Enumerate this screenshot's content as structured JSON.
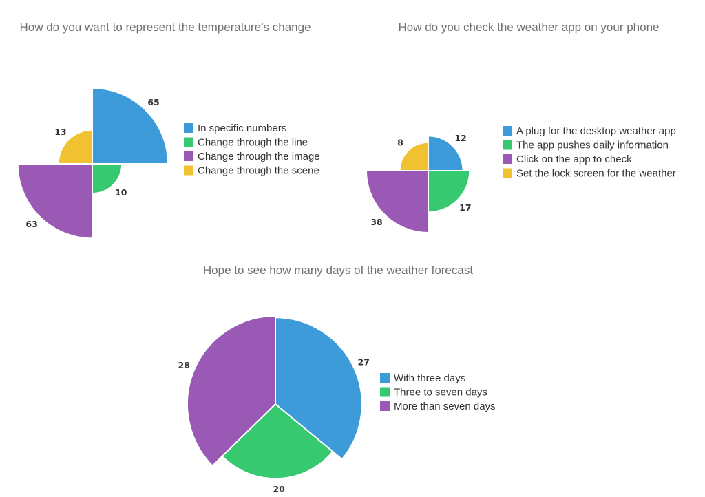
{
  "chart_data": [
    {
      "type": "pie",
      "variant": "rose",
      "title": "How do you want to represent the temperature’s change",
      "legend_position": "right",
      "categories": [
        "In specific numbers",
        "Change through the line",
        "Change through the image",
        "Change through the scene"
      ],
      "values": [
        65,
        10,
        63,
        13
      ],
      "colors": [
        "#3d9bd9",
        "#37c96f",
        "#9b59b6",
        "#f0c231"
      ]
    },
    {
      "type": "pie",
      "variant": "rose",
      "title": "How do you check the weather app on your phone",
      "legend_position": "right",
      "categories": [
        "A plug for the desktop weather app",
        "The app pushes daily information",
        "Click on the app to check",
        "Set the lock screen for the weather"
      ],
      "values": [
        12,
        17,
        38,
        8
      ],
      "colors": [
        "#3d9bd9",
        "#37c96f",
        "#9b59b6",
        "#f0c231"
      ]
    },
    {
      "type": "pie",
      "variant": "rose",
      "title": "Hope to see how many days of the weather forecast",
      "legend_position": "right",
      "categories": [
        "With three days",
        "Three to seven days",
        "More than seven days"
      ],
      "values": [
        27,
        20,
        28
      ],
      "colors": [
        "#3d9bd9",
        "#37c96f",
        "#9b59b6"
      ]
    }
  ]
}
